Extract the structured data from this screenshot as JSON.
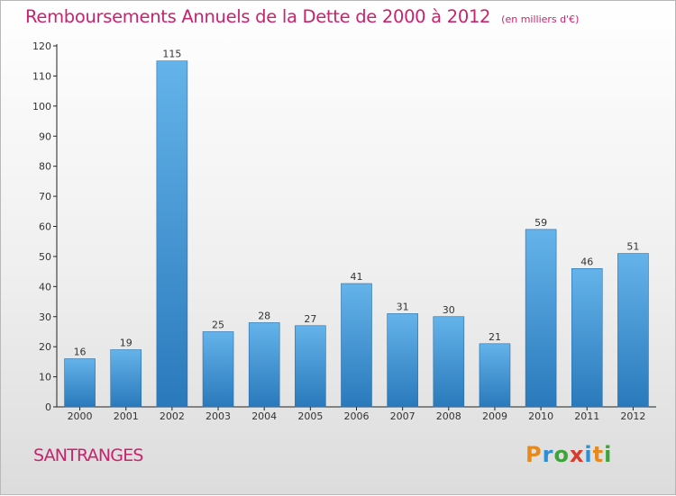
{
  "title": "Remboursements Annuels de la Dette de 2000 à 2012",
  "unit": "(en milliers d'€)",
  "city": "SANTRANGES",
  "logo": {
    "letters": [
      "P",
      "r",
      "o",
      "x",
      "i",
      "t",
      "i"
    ],
    "colors": [
      "#e8891c",
      "#2f8fd6",
      "#3ea43a",
      "#d73b2c",
      "#2f8fd6",
      "#e8891c",
      "#3ea43a"
    ]
  },
  "colors": {
    "accent": "#c8236e",
    "bar_light": "#64b3ea",
    "bar_dark": "#2a79bb"
  },
  "chart_data": {
    "type": "bar",
    "categories": [
      "2000",
      "2001",
      "2002",
      "2003",
      "2004",
      "2005",
      "2006",
      "2007",
      "2008",
      "2009",
      "2010",
      "2011",
      "2012"
    ],
    "values": [
      16,
      19,
      115,
      25,
      28,
      27,
      41,
      31,
      30,
      21,
      59,
      46,
      51
    ],
    "ylim": [
      0,
      120
    ],
    "yticks": [
      0,
      10,
      20,
      30,
      40,
      50,
      60,
      70,
      80,
      90,
      100,
      110,
      120
    ],
    "grid": false,
    "data_labels": true
  }
}
